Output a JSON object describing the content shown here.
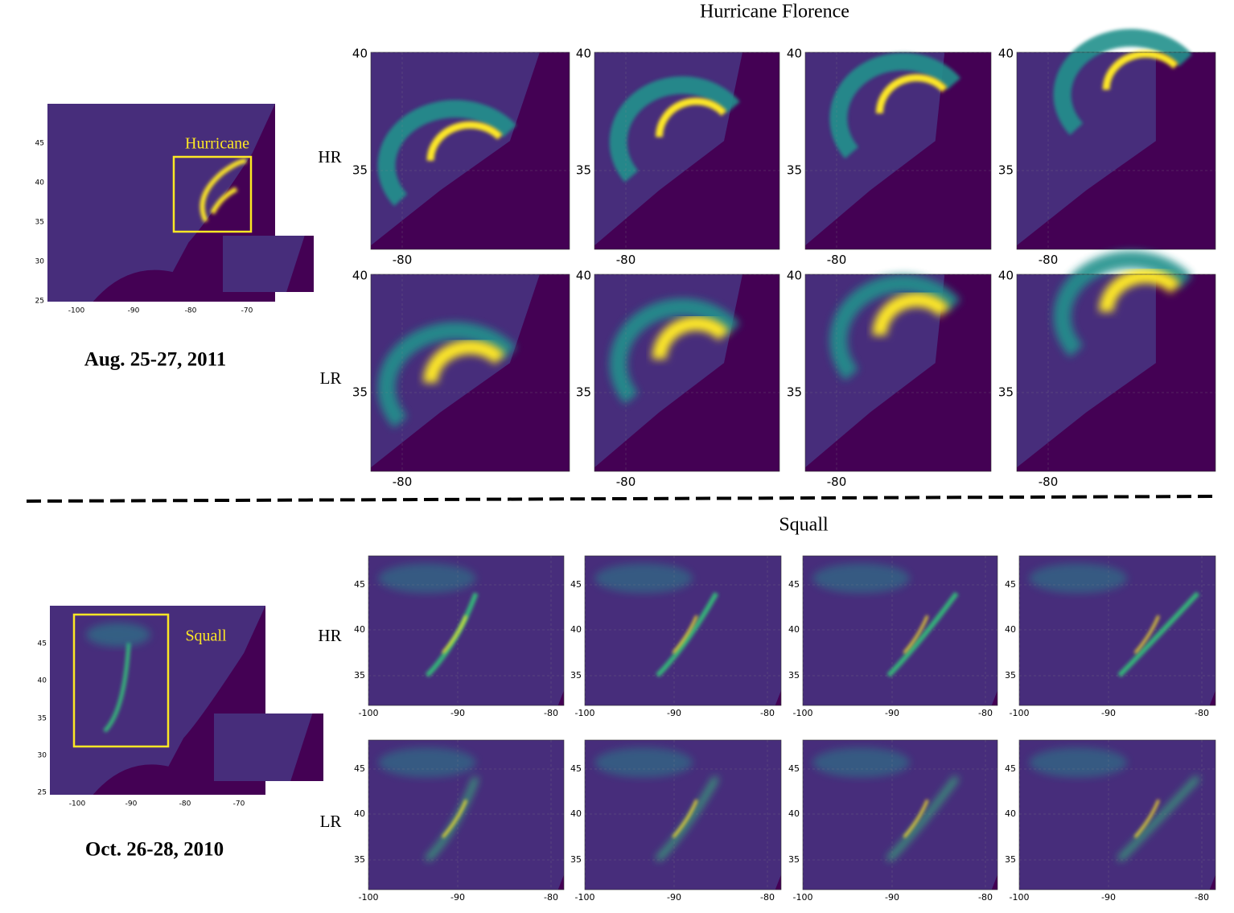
{
  "sections": [
    {
      "title": "Hurricane Florence",
      "date": "Aug. 25-27, 2011",
      "rows": [
        "HR",
        "LR"
      ],
      "overview": {
        "label": "Hurricane",
        "xticks": [
          -100,
          -90,
          -80,
          -70
        ],
        "yticks": [
          45,
          40,
          35,
          30,
          25
        ]
      },
      "panel_xticks": [
        -80
      ],
      "panel_yticks": [
        40,
        35
      ]
    },
    {
      "title": "Squall",
      "date": "Oct. 26-28, 2010",
      "rows": [
        "HR",
        "LR"
      ],
      "overview": {
        "label": "Squall",
        "xticks": [
          -100,
          -90,
          -80,
          -70
        ],
        "yticks": [
          45,
          40,
          35,
          30,
          25
        ]
      },
      "panel_xticks": [
        -100,
        -90,
        -80
      ],
      "panel_yticks": [
        45,
        40,
        35
      ]
    }
  ]
}
